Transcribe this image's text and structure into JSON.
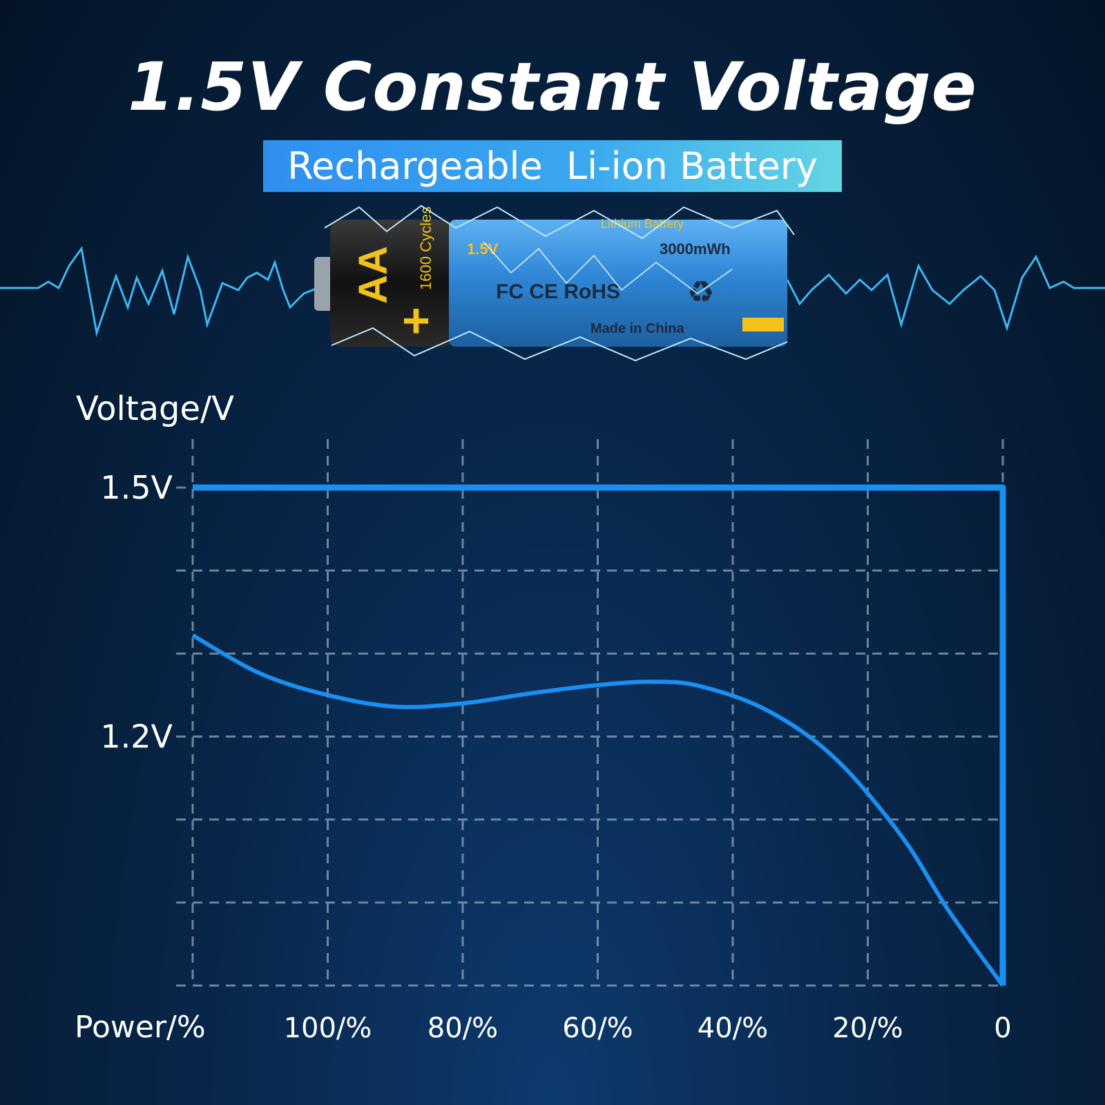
{
  "header": {
    "title": "1.5V Constant Voltage",
    "subtitle": "Rechargeable  Li-ion Battery"
  },
  "battery": {
    "size_label": "AA",
    "voltage_label": "1.5V",
    "type_label": "Lithium Battery",
    "capacity_label": "3000mWh",
    "cycles_label": "1600 Cycles",
    "certifications": "FC CE RoHS",
    "origin_label": "Made in China",
    "colors": {
      "body": "#2f86d6",
      "cap": "#141414",
      "accent": "#f2c21b"
    }
  },
  "colors": {
    "line": "#1a8ff0",
    "grid": "#8fa4bd",
    "wave": "#3fb6f2"
  },
  "chart_data": {
    "type": "line",
    "ylabel": "Voltage/V",
    "xlabel": "Power/%",
    "x_categories": [
      "100/%",
      "80/%",
      "60/%",
      "40/%",
      "20/%",
      "0"
    ],
    "y_tick_labels": [
      {
        "label": "1.5V",
        "value": 1.5
      },
      {
        "label": "1.2V",
        "value": 1.2
      }
    ],
    "xlim": [
      120,
      0
    ],
    "ylim": [
      0.9,
      1.56
    ],
    "grid": true,
    "series": [
      {
        "style": "constant",
        "x": [
          120,
          0,
          0
        ],
        "y": [
          1.5,
          1.5,
          0.9
        ]
      },
      {
        "style": "discharge",
        "x": [
          120,
          110,
          100,
          90,
          80,
          70,
          60,
          52,
          45,
          35,
          25,
          15,
          8,
          0
        ],
        "y": [
          1.322,
          1.276,
          1.25,
          1.236,
          1.24,
          1.252,
          1.262,
          1.266,
          1.261,
          1.232,
          1.175,
          1.08,
          0.99,
          0.9
        ]
      }
    ]
  }
}
